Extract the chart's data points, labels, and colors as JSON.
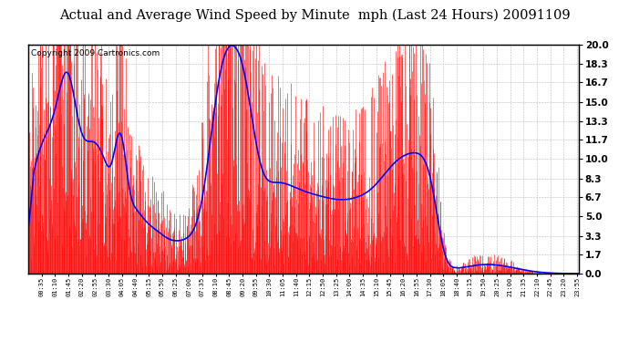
{
  "title": "Actual and Average Wind Speed by Minute  mph (Last 24 Hours) 20091109",
  "copyright": "Copyright 2009 Cartronics.com",
  "yticks": [
    0.0,
    1.7,
    3.3,
    5.0,
    6.7,
    8.3,
    10.0,
    11.7,
    13.3,
    15.0,
    16.7,
    18.3,
    20.0
  ],
  "ylim": [
    0.0,
    20.8
  ],
  "ylim_display": [
    0.0,
    20.0
  ],
  "xlim": [
    0,
    1439
  ],
  "background_color": "#ffffff",
  "bar_color": "#ff0000",
  "line_color": "#0000ff",
  "grid_color": "#bbbbbb",
  "title_fontsize": 11,
  "copyright_fontsize": 6.5
}
